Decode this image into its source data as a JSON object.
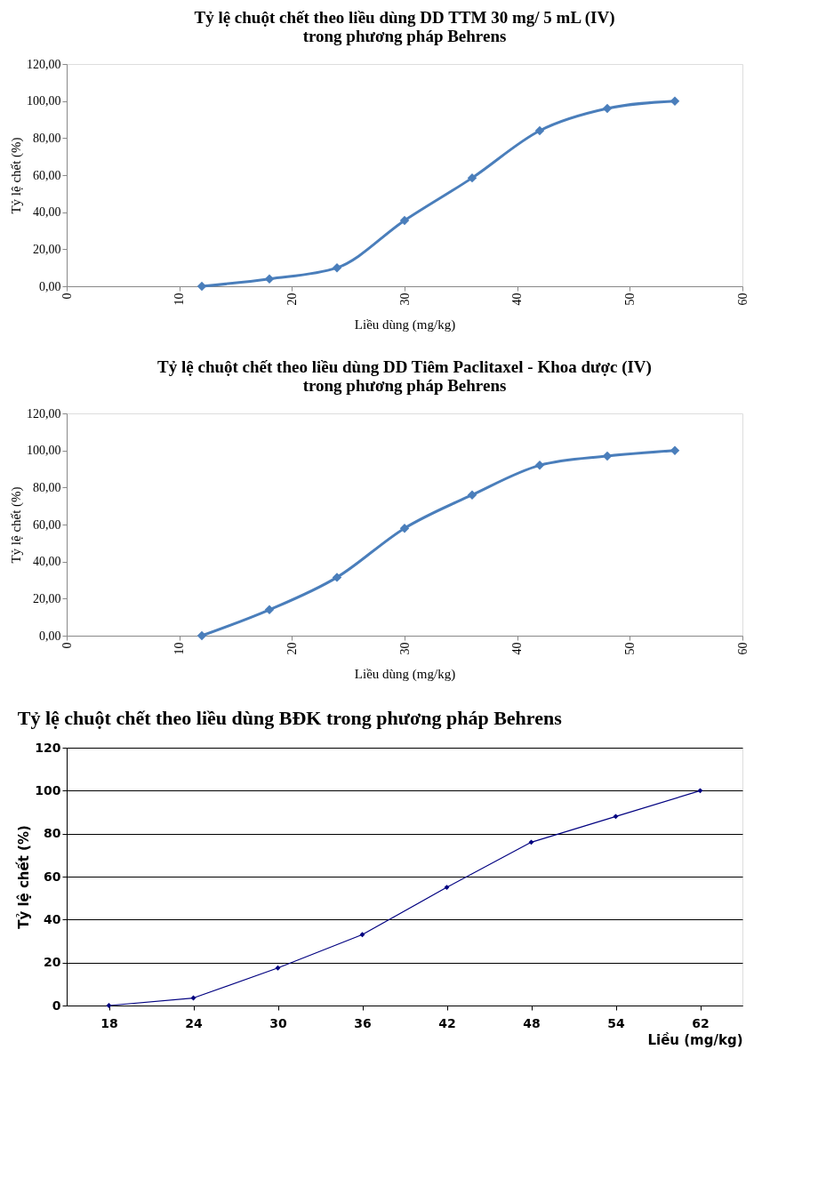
{
  "chart_data": [
    {
      "type": "line",
      "title": [
        "Tỷ lệ chuột chết theo liều dùng DD TTM 30 mg/ 5 mL (IV)",
        "trong phương pháp Behrens"
      ],
      "xlabel": "Liều dùng (mg/kg)",
      "ylabel": "Tỷ lệ chết (%)",
      "x": [
        12,
        18,
        24,
        30,
        36,
        42,
        48,
        54
      ],
      "series": [
        {
          "color": "#4a7ebb",
          "values": [
            0,
            4,
            10,
            35.5,
            58.5,
            84,
            96,
            100
          ]
        }
      ],
      "xlim": [
        0,
        60
      ],
      "xticks": [
        0,
        10,
        20,
        30,
        40,
        50,
        60
      ],
      "ylim": [
        0,
        120
      ],
      "yticks": [
        {
          "value": 0,
          "label": "0,00"
        },
        {
          "value": 20,
          "label": "20,00"
        },
        {
          "value": 40,
          "label": "40,00"
        },
        {
          "value": 60,
          "label": "60,00"
        },
        {
          "value": 80,
          "label": "80,00"
        },
        {
          "value": 100,
          "label": "100,00"
        },
        {
          "value": 120,
          "label": "120,00"
        }
      ],
      "grid": false,
      "legend": false,
      "marker": "diamond",
      "line_style": "solid"
    },
    {
      "type": "line",
      "title": [
        "Tỷ lệ chuột chết theo liều dùng DD Tiêm Paclitaxel - Khoa dược (IV)",
        "trong phương pháp Behrens"
      ],
      "xlabel": "Liều dùng (mg/kg)",
      "ylabel": "Tỷ lệ chết (%)",
      "x": [
        12,
        18,
        24,
        30,
        36,
        42,
        48,
        54
      ],
      "series": [
        {
          "color": "#4a7ebb",
          "values": [
            0,
            14,
            31.5,
            58,
            76,
            92,
            97,
            100
          ]
        }
      ],
      "xlim": [
        0,
        60
      ],
      "xticks": [
        0,
        10,
        20,
        30,
        40,
        50,
        60
      ],
      "ylim": [
        0,
        120
      ],
      "yticks": [
        {
          "value": 0,
          "label": "0,00"
        },
        {
          "value": 20,
          "label": "20,00"
        },
        {
          "value": 40,
          "label": "40,00"
        },
        {
          "value": 60,
          "label": "60,00"
        },
        {
          "value": 80,
          "label": "80,00"
        },
        {
          "value": 100,
          "label": "100,00"
        },
        {
          "value": 120,
          "label": "120,00"
        }
      ],
      "grid": false,
      "legend": false,
      "marker": "diamond",
      "line_style": "solid"
    },
    {
      "type": "line",
      "title": "Tỷ lệ chuột chết theo liều dùng BĐK trong phương pháp Behrens",
      "xlabel": "Liều (mg/kg)",
      "ylabel": "Tỷ lệ chết (%)",
      "categories": [
        "18",
        "24",
        "30",
        "36",
        "42",
        "48",
        "54",
        "62"
      ],
      "series": [
        {
          "color": "#000080",
          "values": [
            0,
            3.5,
            17.5,
            33,
            55,
            76,
            88,
            100
          ]
        }
      ],
      "ylim": [
        0,
        120
      ],
      "yticks": [
        0,
        20,
        40,
        60,
        80,
        100,
        120
      ],
      "grid": "y",
      "legend": false,
      "marker": "diamond",
      "line_style": "solid"
    }
  ]
}
